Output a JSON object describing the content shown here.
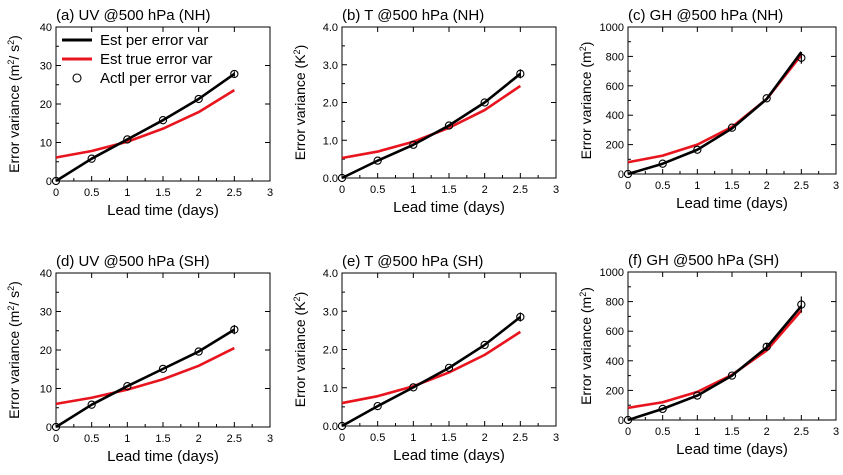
{
  "figure": {
    "legend": {
      "placement": "top-left of panel (a)",
      "entries": [
        {
          "label": "Est per error var",
          "color": "#000000",
          "style": "line"
        },
        {
          "label": "Est true error var",
          "color": "#e8141e",
          "style": "line"
        },
        {
          "label": "Actl per error var",
          "color": "#000000",
          "style": "open-circle"
        }
      ]
    },
    "colors": {
      "est_per": "#000000",
      "est_true": "#e8141e",
      "actual": "#000000"
    }
  },
  "chart_data": [
    {
      "type": "line",
      "title": "(a) UV @500 hPa (NH)",
      "xlabel": "Lead time (days)",
      "ylabel": "Error variance (m²/ s²)",
      "xlim": [
        0,
        3
      ],
      "ylim": [
        0,
        40
      ],
      "xticks": [
        "0",
        "0.5",
        "1",
        "1.5",
        "2",
        "2.5",
        "3"
      ],
      "yticks": [
        "0",
        "10",
        "20",
        "30",
        "40"
      ],
      "x": [
        0,
        0.5,
        1,
        1.5,
        2,
        2.5
      ],
      "series": [
        {
          "name": "Est per error var",
          "values": [
            0,
            5.8,
            10.8,
            15.8,
            21.3,
            27.8
          ]
        },
        {
          "name": "Est true error var",
          "values": [
            6.1,
            7.8,
            10.2,
            13.6,
            17.9,
            23.6
          ]
        },
        {
          "name": "Actl per error var",
          "values": [
            0,
            5.8,
            10.8,
            15.8,
            21.3,
            27.8
          ],
          "error": [
            0,
            0,
            0,
            0,
            0,
            0.7
          ]
        }
      ]
    },
    {
      "type": "line",
      "title": "(b) T @500 hPa (NH)",
      "xlabel": "Lead time (days)",
      "ylabel": "Error variance (K²)",
      "xlim": [
        0,
        3
      ],
      "ylim": [
        0,
        4
      ],
      "xticks": [
        "0",
        "0.5",
        "1",
        "1.5",
        "2",
        "2.5",
        "3"
      ],
      "yticks": [
        "0.0",
        "1.0",
        "2.0",
        "3.0",
        "4.0"
      ],
      "x": [
        0,
        0.5,
        1,
        1.5,
        2,
        2.5
      ],
      "series": [
        {
          "name": "Est per error var",
          "values": [
            0,
            0.46,
            0.88,
            1.39,
            2.0,
            2.76
          ]
        },
        {
          "name": "Est true error var",
          "values": [
            0.53,
            0.7,
            0.96,
            1.33,
            1.8,
            2.44
          ]
        },
        {
          "name": "Actl per error var",
          "values": [
            0,
            0.46,
            0.88,
            1.39,
            2.0,
            2.76
          ],
          "error": [
            0,
            0,
            0,
            0,
            0,
            0.12
          ]
        }
      ]
    },
    {
      "type": "line",
      "title": "(c) GH @500 hPa (NH)",
      "xlabel": "Lead time (days)",
      "ylabel": "Error variance (m²)",
      "xlim": [
        0,
        3
      ],
      "ylim": [
        0,
        1000
      ],
      "xticks": [
        "0",
        "0.5",
        "1",
        "1.5",
        "2",
        "2.5",
        "3"
      ],
      "yticks": [
        "0",
        "200",
        "400",
        "600",
        "800",
        "1000"
      ],
      "x": [
        0,
        0.5,
        1,
        1.5,
        2,
        2.5
      ],
      "series": [
        {
          "name": "Est per error var",
          "values": [
            0,
            70,
            165,
            310,
            510,
            830
          ]
        },
        {
          "name": "Est true error var",
          "values": [
            80,
            125,
            200,
            320,
            510,
            810
          ]
        },
        {
          "name": "Actl per error var",
          "values": [
            0,
            70,
            165,
            315,
            515,
            790
          ],
          "error": [
            0,
            0,
            0,
            0,
            0,
            40
          ]
        }
      ]
    },
    {
      "type": "line",
      "title": "(d) UV @500 hPa (SH)",
      "xlabel": "Lead time (days)",
      "ylabel": "Error variance (m²/ s²)",
      "xlim": [
        0,
        3
      ],
      "ylim": [
        0,
        40
      ],
      "xticks": [
        "0",
        "0.5",
        "1",
        "1.5",
        "2",
        "2.5",
        "3"
      ],
      "yticks": [
        "0",
        "10",
        "20",
        "30",
        "40"
      ],
      "x": [
        0,
        0.5,
        1,
        1.5,
        2,
        2.5
      ],
      "series": [
        {
          "name": "Est per error var",
          "values": [
            0,
            5.8,
            10.6,
            15.1,
            19.6,
            25.3
          ]
        },
        {
          "name": "Est true error var",
          "values": [
            6.0,
            7.6,
            9.7,
            12.4,
            15.9,
            20.5
          ]
        },
        {
          "name": "Actl per error var",
          "values": [
            0,
            5.8,
            10.6,
            15.1,
            19.6,
            25.3
          ],
          "error": [
            0,
            0,
            0,
            0,
            0,
            1.2
          ]
        }
      ]
    },
    {
      "type": "line",
      "title": "(e) T @500 hPa (SH)",
      "xlabel": "Lead time (days)",
      "ylabel": "Error variance (K²)",
      "xlim": [
        0,
        3
      ],
      "ylim": [
        0,
        4
      ],
      "xticks": [
        "0",
        "0.5",
        "1",
        "1.5",
        "2",
        "2.5",
        "3"
      ],
      "yticks": [
        "0.0",
        "1.0",
        "2.0",
        "3.0",
        "4.0"
      ],
      "x": [
        0,
        0.5,
        1,
        1.5,
        2,
        2.5
      ],
      "series": [
        {
          "name": "Est per error var",
          "values": [
            0,
            0.52,
            1.01,
            1.52,
            2.12,
            2.85
          ]
        },
        {
          "name": "Est true error var",
          "values": [
            0.6,
            0.78,
            1.04,
            1.4,
            1.86,
            2.46
          ]
        },
        {
          "name": "Actl per error var",
          "values": [
            0,
            0.52,
            1.01,
            1.52,
            2.12,
            2.85
          ],
          "error": [
            0,
            0,
            0,
            0,
            0,
            0.12
          ]
        }
      ]
    },
    {
      "type": "line",
      "title": "(f) GH @500 hPa (SH)",
      "xlabel": "Lead time (days)",
      "ylabel": "Error variance (m²)",
      "xlim": [
        0,
        3
      ],
      "ylim": [
        0,
        1000
      ],
      "xticks": [
        "0",
        "0.5",
        "1",
        "1.5",
        "2",
        "2.5",
        "3"
      ],
      "yticks": [
        "0",
        "200",
        "400",
        "600",
        "800",
        "1000"
      ],
      "x": [
        0,
        0.5,
        1,
        1.5,
        2,
        2.5
      ],
      "series": [
        {
          "name": "Est per error var",
          "values": [
            0,
            75,
            165,
            300,
            490,
            770
          ]
        },
        {
          "name": "Est true error var",
          "values": [
            82,
            120,
            190,
            305,
            470,
            740
          ]
        },
        {
          "name": "Actl per error var",
          "values": [
            0,
            75,
            165,
            300,
            495,
            780
          ],
          "error": [
            0,
            0,
            0,
            0,
            25,
            55
          ]
        }
      ]
    }
  ]
}
